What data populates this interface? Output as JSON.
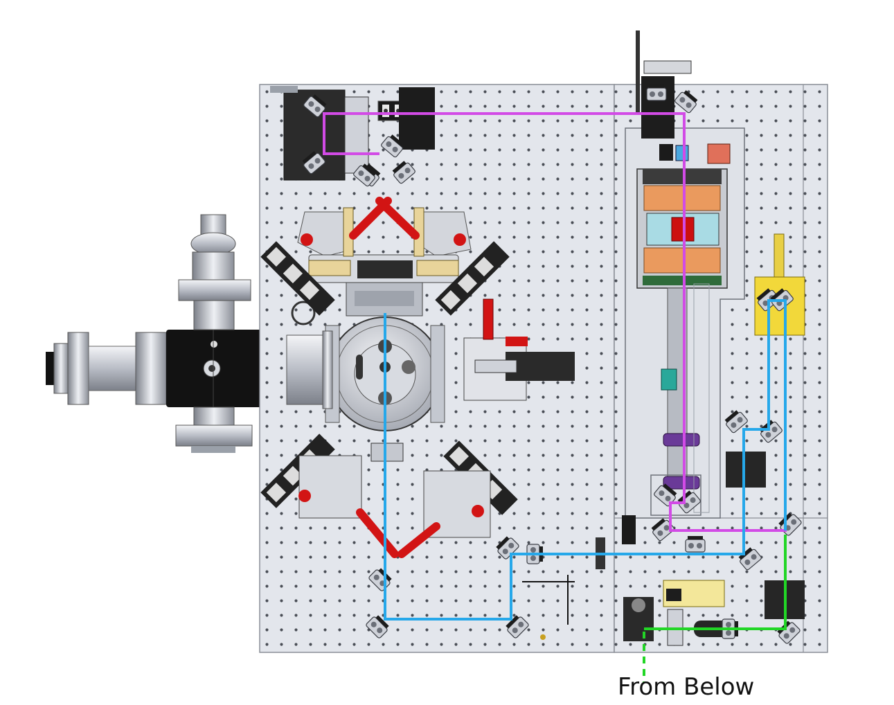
{
  "caption": "From Below",
  "colors": {
    "board": "#e3e6ec",
    "board_edge": "#8a8e96",
    "hole": "#4a4e56",
    "beam_magenta": "#d24be6",
    "beam_blue": "#26a8ea",
    "beam_green": "#22d626",
    "red_arm": "#d21414",
    "brass": "#e8d49a",
    "copper": "#ea9a5e",
    "yellow_block": "#f2d83a",
    "black_body": "#111111",
    "steel": "#c8ccd4",
    "purple": "#6a3a98",
    "teal": "#29a89a"
  },
  "icons": [
    "vacuum-chamber-icon",
    "beam-path-icon",
    "optical-mount-icon"
  ]
}
